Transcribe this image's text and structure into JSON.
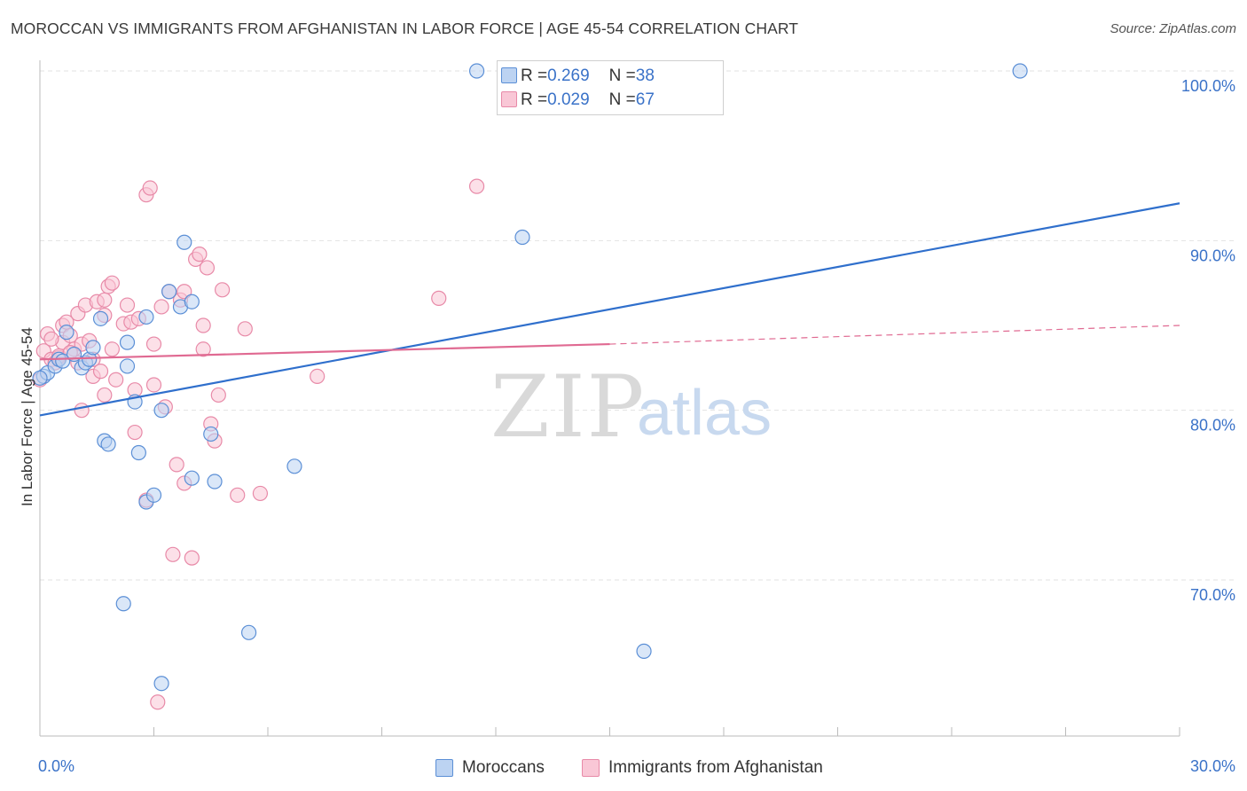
{
  "header": {
    "title": "MOROCCAN VS IMMIGRANTS FROM AFGHANISTAN IN LABOR FORCE | AGE 45-54 CORRELATION CHART",
    "source": "Source: ZipAtlas.com"
  },
  "legend_top": {
    "rows": [
      {
        "r_label": "R = ",
        "r_value": "0.269",
        "n_label": "N = ",
        "n_value": "38"
      },
      {
        "r_label": "R = ",
        "r_value": "0.029",
        "n_label": "N = ",
        "n_value": "67"
      }
    ]
  },
  "legend_bottom": {
    "items": [
      {
        "label": "Moroccans"
      },
      {
        "label": "Immigrants from Afghanistan"
      }
    ]
  },
  "watermark": {
    "zip": "ZIP",
    "atlas": "atlas"
  },
  "colors": {
    "moroccan_fill": "#bcd3f2",
    "moroccan_stroke": "#5b8fd6",
    "moroccan_line": "#2f6fcc",
    "afghan_fill": "#f9c7d6",
    "afghan_stroke": "#e88aa8",
    "afghan_line": "#e06a92",
    "grid": "#e2e2e2",
    "axis": "#bbbbbb",
    "tick_text": "#3a72c8"
  },
  "chart_data": {
    "type": "scatter",
    "title": "MOROCCAN VS IMMIGRANTS FROM AFGHANISTAN IN LABOR FORCE | AGE 45-54 CORRELATION CHART",
    "xlabel": "",
    "ylabel": "In Labor Force | Age 45-54",
    "xlim": [
      0,
      30
    ],
    "ylim": [
      60.5,
      101
    ],
    "x_tick_labels": [
      "0.0%",
      "30.0%"
    ],
    "y_ticks": [
      70,
      80,
      90,
      100
    ],
    "y_tick_labels": [
      "70.0%",
      "80.0%",
      "90.0%",
      "100.0%"
    ],
    "grid": true,
    "legend_placement": "top-center",
    "series": [
      {
        "name": "Moroccans",
        "r": 0.269,
        "n": 38,
        "trend": {
          "x": [
            0,
            30
          ],
          "y": [
            79.7,
            92.2
          ],
          "dashed_after": null
        },
        "points": [
          [
            0.1,
            82.0
          ],
          [
            0.2,
            82.2
          ],
          [
            0.4,
            82.6
          ],
          [
            0.5,
            83.0
          ],
          [
            0.6,
            82.9
          ],
          [
            0.7,
            84.6
          ],
          [
            0.9,
            83.3
          ],
          [
            1.1,
            82.5
          ],
          [
            1.2,
            82.8
          ],
          [
            1.3,
            83.0
          ],
          [
            1.4,
            83.7
          ],
          [
            1.6,
            85.4
          ],
          [
            1.7,
            78.2
          ],
          [
            1.8,
            78.0
          ],
          [
            2.2,
            68.6
          ],
          [
            2.3,
            82.6
          ],
          [
            2.3,
            84.0
          ],
          [
            2.5,
            80.5
          ],
          [
            2.6,
            77.5
          ],
          [
            2.8,
            74.6
          ],
          [
            2.8,
            85.5
          ],
          [
            3.0,
            75.0
          ],
          [
            3.2,
            63.9
          ],
          [
            3.2,
            80.0
          ],
          [
            3.4,
            87.0
          ],
          [
            3.7,
            86.1
          ],
          [
            3.8,
            89.9
          ],
          [
            4.0,
            86.4
          ],
          [
            4.0,
            76.0
          ],
          [
            4.6,
            75.8
          ],
          [
            4.5,
            78.6
          ],
          [
            5.5,
            66.9
          ],
          [
            6.7,
            76.7
          ],
          [
            11.5,
            100.0
          ],
          [
            12.7,
            90.2
          ],
          [
            15.9,
            65.8
          ],
          [
            25.8,
            100.0
          ],
          [
            0.0,
            81.9
          ]
        ]
      },
      {
        "name": "Immigrants from Afghanistan",
        "r": 0.029,
        "n": 67,
        "trend": {
          "x": [
            0,
            15
          ],
          "y": [
            83.0,
            83.9
          ],
          "dashed_to": {
            "x": 30,
            "y": 85.0
          }
        },
        "points": [
          [
            0.0,
            81.8
          ],
          [
            0.1,
            83.5
          ],
          [
            0.2,
            84.5
          ],
          [
            0.3,
            83.0
          ],
          [
            0.4,
            82.8
          ],
          [
            0.5,
            83.1
          ],
          [
            0.6,
            84.0
          ],
          [
            0.6,
            85.0
          ],
          [
            0.7,
            85.2
          ],
          [
            0.8,
            84.4
          ],
          [
            0.9,
            83.6
          ],
          [
            1.0,
            85.7
          ],
          [
            1.0,
            82.8
          ],
          [
            1.1,
            80.0
          ],
          [
            1.1,
            83.9
          ],
          [
            1.2,
            86.2
          ],
          [
            1.3,
            84.1
          ],
          [
            1.4,
            83.0
          ],
          [
            1.4,
            82.0
          ],
          [
            1.5,
            86.4
          ],
          [
            1.6,
            82.3
          ],
          [
            1.7,
            85.6
          ],
          [
            1.7,
            86.5
          ],
          [
            1.7,
            80.9
          ],
          [
            1.8,
            87.3
          ],
          [
            1.9,
            83.6
          ],
          [
            1.9,
            87.5
          ],
          [
            2.0,
            81.8
          ],
          [
            2.2,
            85.1
          ],
          [
            2.4,
            85.2
          ],
          [
            2.5,
            81.2
          ],
          [
            2.5,
            78.7
          ],
          [
            2.6,
            85.4
          ],
          [
            2.8,
            74.7
          ],
          [
            2.8,
            92.7
          ],
          [
            2.9,
            93.1
          ],
          [
            3.0,
            81.5
          ],
          [
            3.0,
            83.9
          ],
          [
            3.1,
            62.8
          ],
          [
            3.2,
            86.1
          ],
          [
            3.3,
            80.2
          ],
          [
            3.4,
            87.0
          ],
          [
            3.5,
            71.5
          ],
          [
            3.6,
            76.8
          ],
          [
            3.7,
            86.5
          ],
          [
            3.8,
            75.7
          ],
          [
            3.8,
            87.0
          ],
          [
            4.0,
            71.3
          ],
          [
            4.1,
            88.9
          ],
          [
            4.2,
            89.2
          ],
          [
            4.3,
            85.0
          ],
          [
            4.3,
            83.6
          ],
          [
            4.4,
            88.4
          ],
          [
            4.5,
            79.2
          ],
          [
            4.6,
            78.2
          ],
          [
            4.7,
            80.9
          ],
          [
            4.8,
            87.1
          ],
          [
            5.2,
            75.0
          ],
          [
            5.4,
            84.8
          ],
          [
            5.8,
            75.1
          ],
          [
            7.3,
            82.0
          ],
          [
            10.5,
            86.6
          ],
          [
            11.5,
            93.2
          ],
          [
            0.3,
            84.2
          ],
          [
            0.5,
            83.2
          ],
          [
            0.8,
            83.4
          ],
          [
            2.3,
            86.2
          ]
        ]
      }
    ]
  }
}
